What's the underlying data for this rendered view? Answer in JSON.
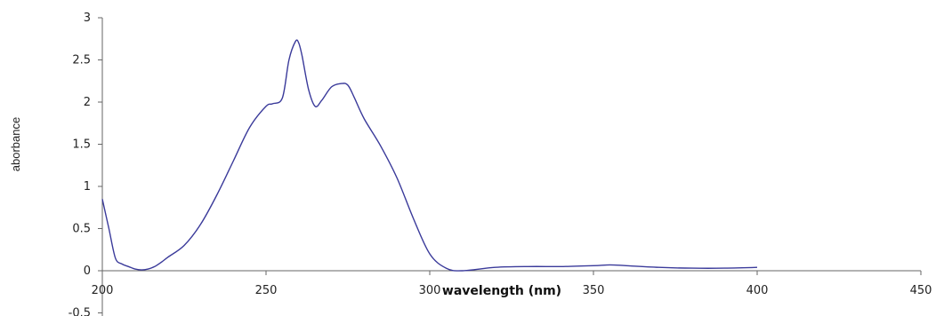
{
  "chart_data": {
    "type": "line",
    "title": "",
    "xlabel": "wavelength (nm)",
    "ylabel": "aborbance",
    "xlim": [
      200,
      450
    ],
    "ylim": [
      -0.5,
      3
    ],
    "x_ticks": [
      "200",
      "250",
      "300",
      "350",
      "400",
      "450"
    ],
    "y_ticks": [
      "-0.5",
      "0",
      "0.5",
      "1",
      "1.5",
      "2",
      "2.5",
      "3"
    ],
    "grid": false,
    "legend": "none",
    "series": [
      {
        "color": "#3a3a9a",
        "x": [
          200,
          202,
          204,
          206,
          208,
          210,
          212,
          214,
          216,
          218,
          220,
          225,
          230,
          235,
          240,
          245,
          250,
          252,
          255,
          257,
          259,
          260,
          261,
          263,
          265,
          267,
          270,
          273,
          275,
          277,
          280,
          285,
          290,
          295,
          300,
          305,
          310,
          320,
          330,
          340,
          350,
          355,
          360,
          370,
          380,
          390,
          400
        ],
        "y": [
          0.85,
          0.5,
          0.15,
          0.08,
          0.05,
          0.02,
          0.01,
          0.02,
          0.05,
          0.1,
          0.16,
          0.3,
          0.55,
          0.9,
          1.3,
          1.7,
          1.95,
          1.98,
          2.05,
          2.5,
          2.72,
          2.7,
          2.55,
          2.15,
          1.95,
          2.02,
          2.18,
          2.22,
          2.2,
          2.05,
          1.8,
          1.48,
          1.1,
          0.62,
          0.2,
          0.03,
          0.0,
          0.04,
          0.05,
          0.05,
          0.06,
          0.07,
          0.06,
          0.04,
          0.03,
          0.03,
          0.04
        ]
      }
    ]
  }
}
